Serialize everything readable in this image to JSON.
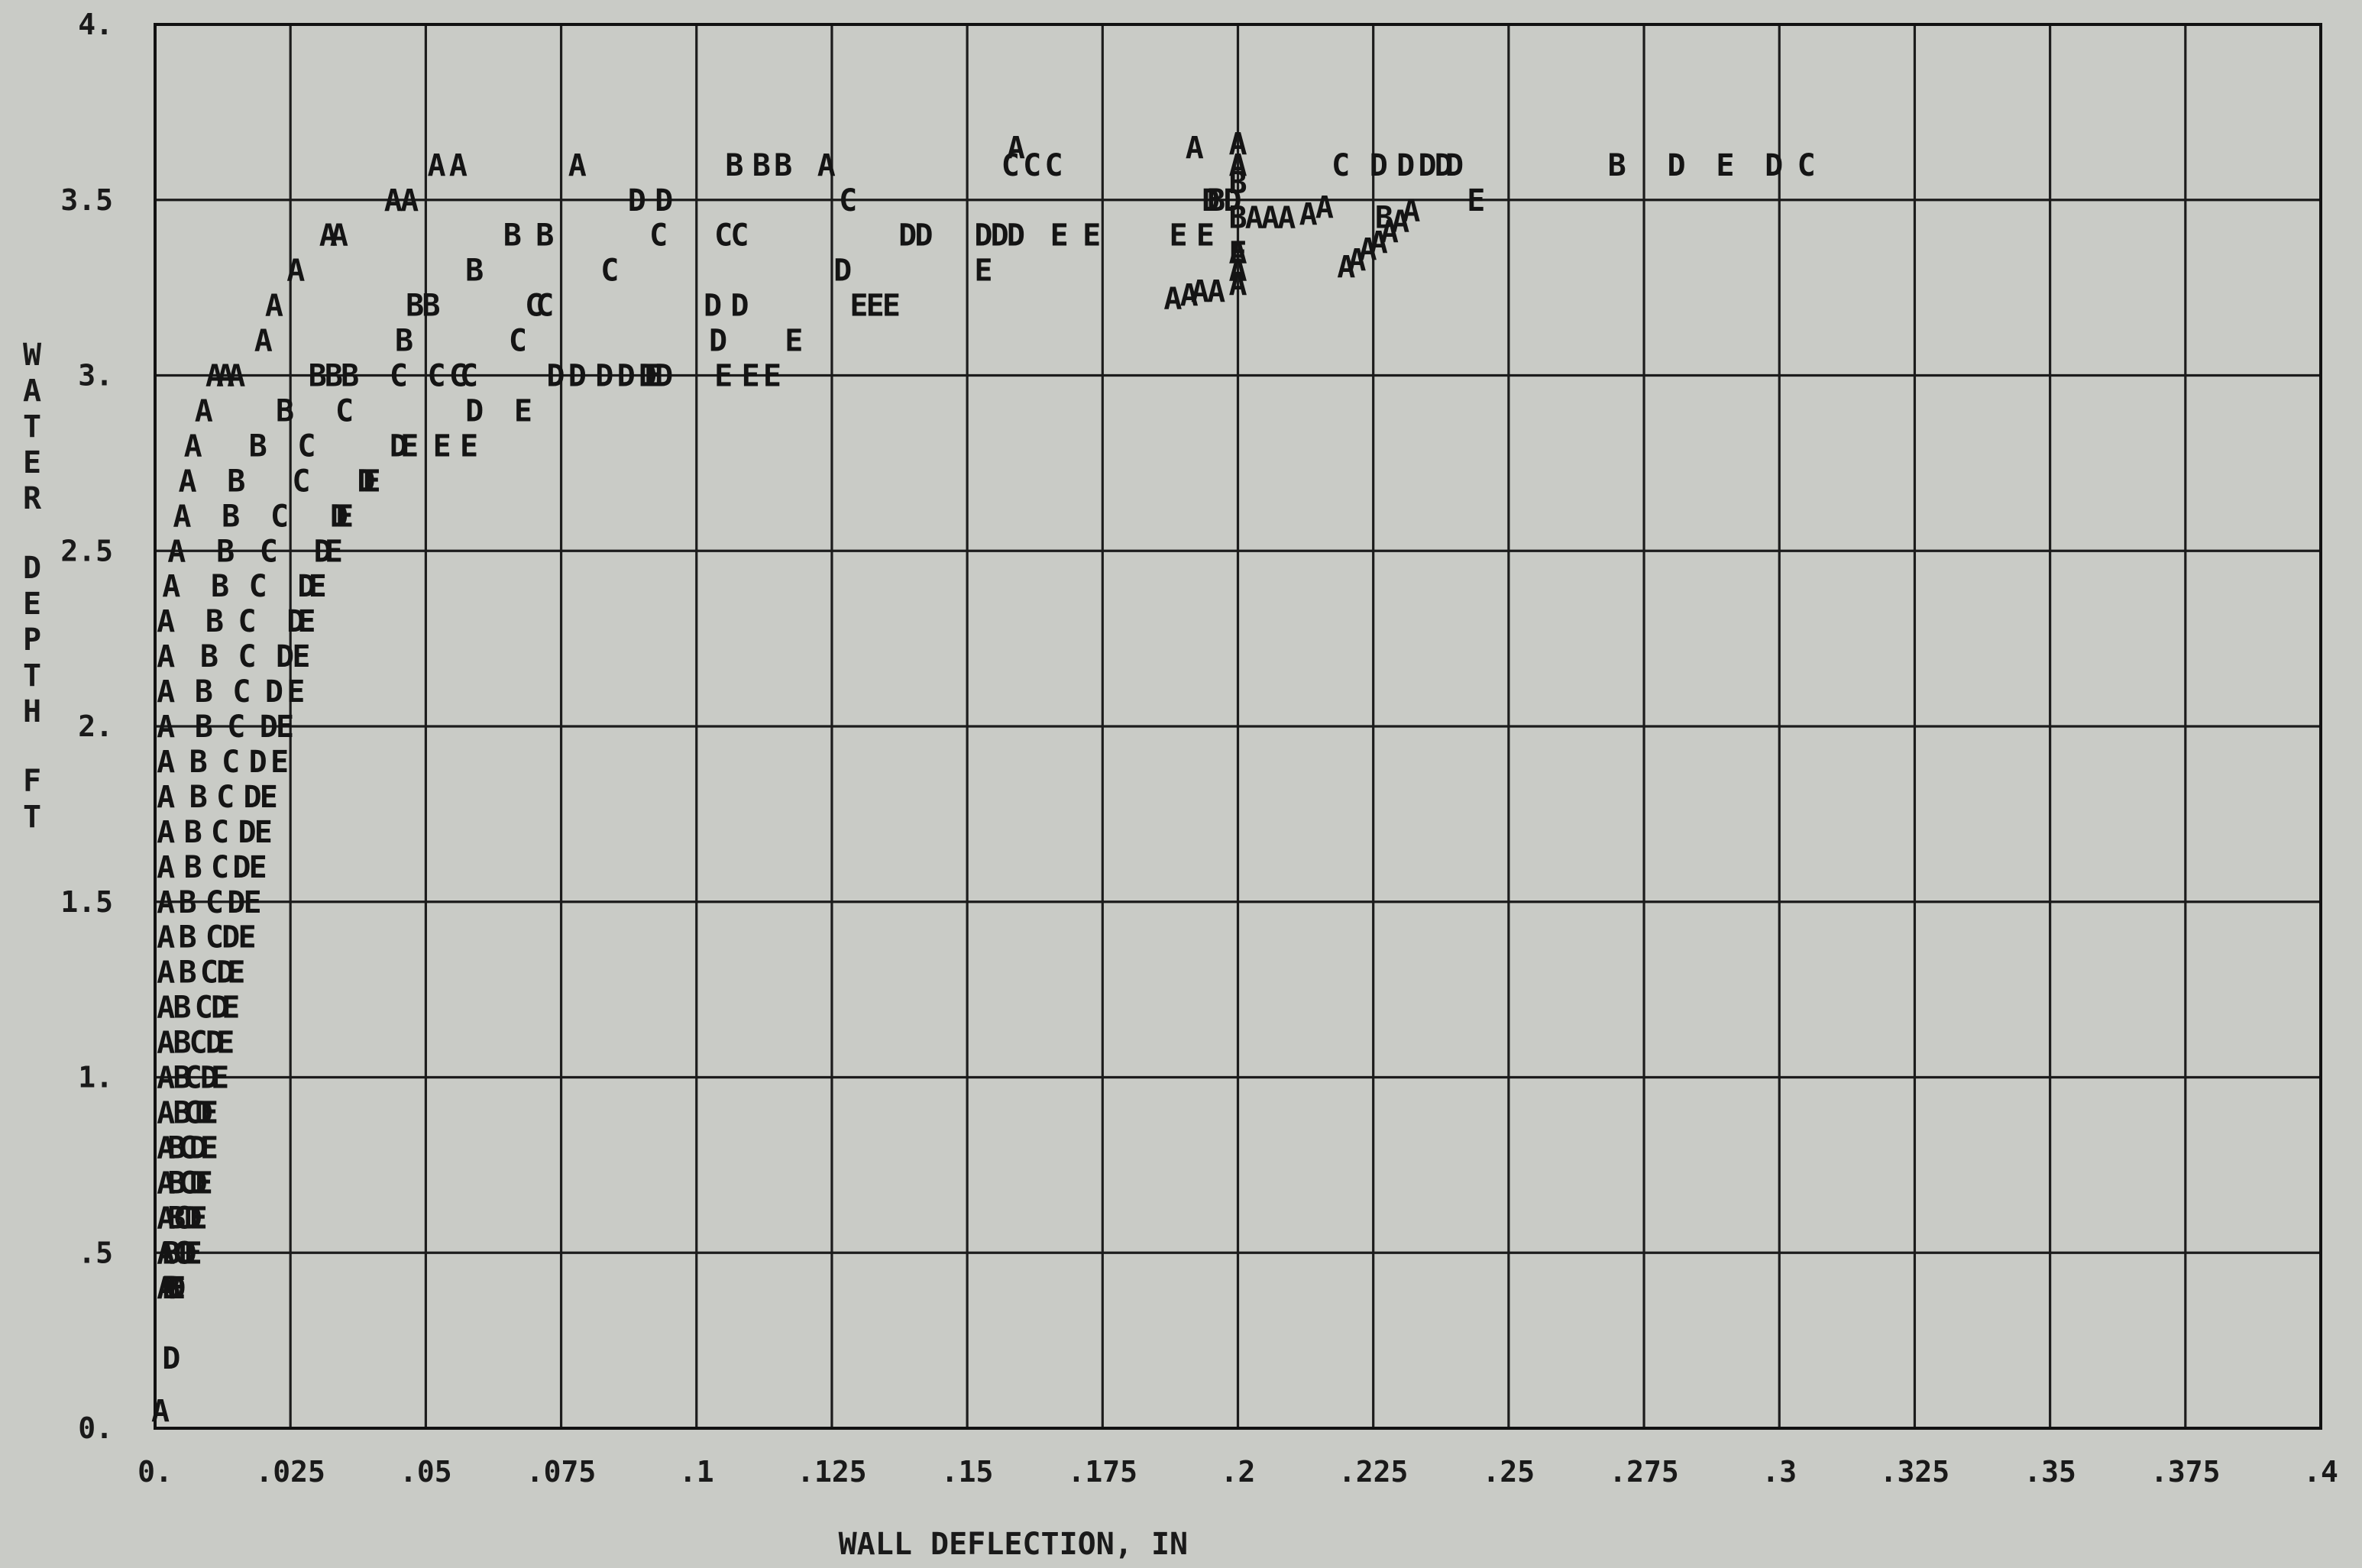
{
  "chart_data": {
    "type": "scatter",
    "title": "",
    "xlabel": "WALL DEFLECTION, IN",
    "ylabel": "WATER DEPTH FT",
    "xlim": [
      0,
      0.4
    ],
    "ylim": [
      0,
      4
    ],
    "grid": true,
    "x_ticks": [
      0,
      0.025,
      0.05,
      0.075,
      0.1,
      0.125,
      0.15,
      0.175,
      0.2,
      0.225,
      0.25,
      0.275,
      0.3,
      0.325,
      0.35,
      0.375,
      0.4
    ],
    "x_tick_labels": [
      "0.",
      ".025",
      ".05",
      ".075",
      ".1",
      ".125",
      ".15",
      ".175",
      ".2",
      ".225",
      ".25",
      ".275",
      ".3",
      ".325",
      ".35",
      ".375",
      ".4"
    ],
    "y_ticks": [
      0,
      0.5,
      1,
      1.5,
      2,
      2.5,
      3,
      3.5,
      4
    ],
    "y_tick_labels": [
      "0.",
      ".5",
      "1.",
      "1.5",
      "2.",
      "2.5",
      "3.",
      "3.5",
      "4."
    ],
    "series": [
      {
        "name": "A",
        "points": [
          [
            0.001,
            0.05
          ],
          [
            0.002,
            0.4
          ],
          [
            0.002,
            0.5
          ],
          [
            0.002,
            0.6
          ],
          [
            0.002,
            0.7
          ],
          [
            0.002,
            0.8
          ],
          [
            0.002,
            0.9
          ],
          [
            0.002,
            1.0
          ],
          [
            0.002,
            1.1
          ],
          [
            0.002,
            1.2
          ],
          [
            0.002,
            1.3
          ],
          [
            0.002,
            1.4
          ],
          [
            0.002,
            1.5
          ],
          [
            0.002,
            1.6
          ],
          [
            0.002,
            1.7
          ],
          [
            0.002,
            1.8
          ],
          [
            0.002,
            1.9
          ],
          [
            0.002,
            2.0
          ],
          [
            0.002,
            2.1
          ],
          [
            0.002,
            2.2
          ],
          [
            0.002,
            2.3
          ],
          [
            0.003,
            2.4
          ],
          [
            0.004,
            2.5
          ],
          [
            0.005,
            2.6
          ],
          [
            0.006,
            2.7
          ],
          [
            0.007,
            2.8
          ],
          [
            0.009,
            2.9
          ],
          [
            0.011,
            3.0
          ],
          [
            0.013,
            3.0
          ],
          [
            0.015,
            3.0
          ],
          [
            0.02,
            3.1
          ],
          [
            0.022,
            3.2
          ],
          [
            0.026,
            3.3
          ],
          [
            0.032,
            3.4
          ],
          [
            0.034,
            3.4
          ],
          [
            0.044,
            3.5
          ],
          [
            0.047,
            3.5
          ],
          [
            0.052,
            3.6
          ],
          [
            0.056,
            3.6
          ],
          [
            0.078,
            3.6
          ],
          [
            0.124,
            3.6
          ],
          [
            0.159,
            3.65
          ],
          [
            0.192,
            3.65
          ],
          [
            0.2,
            3.66
          ],
          [
            0.2,
            3.6
          ],
          [
            0.188,
            3.22
          ],
          [
            0.191,
            3.23
          ],
          [
            0.193,
            3.24
          ],
          [
            0.196,
            3.24
          ],
          [
            0.2,
            3.26
          ],
          [
            0.203,
            3.45
          ],
          [
            0.206,
            3.45
          ],
          [
            0.209,
            3.45
          ],
          [
            0.213,
            3.46
          ],
          [
            0.22,
            3.31
          ],
          [
            0.222,
            3.33
          ],
          [
            0.224,
            3.36
          ],
          [
            0.226,
            3.38
          ],
          [
            0.228,
            3.41
          ],
          [
            0.23,
            3.44
          ],
          [
            0.232,
            3.47
          ],
          [
            0.216,
            3.48
          ],
          [
            0.2,
            3.3
          ],
          [
            0.2,
            3.35
          ]
        ]
      },
      {
        "name": "B",
        "points": [
          [
            0.003,
            0.4
          ],
          [
            0.003,
            0.5
          ],
          [
            0.004,
            0.6
          ],
          [
            0.004,
            0.7
          ],
          [
            0.004,
            0.8
          ],
          [
            0.005,
            0.9
          ],
          [
            0.005,
            1.0
          ],
          [
            0.005,
            1.1
          ],
          [
            0.005,
            1.2
          ],
          [
            0.006,
            1.3
          ],
          [
            0.006,
            1.4
          ],
          [
            0.006,
            1.5
          ],
          [
            0.007,
            1.6
          ],
          [
            0.007,
            1.7
          ],
          [
            0.008,
            1.8
          ],
          [
            0.008,
            1.9
          ],
          [
            0.009,
            2.0
          ],
          [
            0.009,
            2.1
          ],
          [
            0.01,
            2.2
          ],
          [
            0.011,
            2.3
          ],
          [
            0.012,
            2.4
          ],
          [
            0.013,
            2.5
          ],
          [
            0.014,
            2.6
          ],
          [
            0.015,
            2.7
          ],
          [
            0.019,
            2.8
          ],
          [
            0.024,
            2.9
          ],
          [
            0.03,
            3.0
          ],
          [
            0.033,
            3.0
          ],
          [
            0.036,
            3.0
          ],
          [
            0.046,
            3.1
          ],
          [
            0.048,
            3.2
          ],
          [
            0.051,
            3.2
          ],
          [
            0.059,
            3.3
          ],
          [
            0.066,
            3.4
          ],
          [
            0.072,
            3.4
          ],
          [
            0.107,
            3.6
          ],
          [
            0.112,
            3.6
          ],
          [
            0.116,
            3.6
          ],
          [
            0.196,
            3.5
          ],
          [
            0.2,
            3.45
          ],
          [
            0.2,
            3.55
          ],
          [
            0.227,
            3.45
          ],
          [
            0.27,
            3.6
          ]
        ]
      },
      {
        "name": "C",
        "points": [
          [
            0.005,
            0.5
          ],
          [
            0.005,
            0.6
          ],
          [
            0.006,
            0.7
          ],
          [
            0.006,
            0.8
          ],
          [
            0.007,
            0.9
          ],
          [
            0.007,
            1.0
          ],
          [
            0.008,
            1.1
          ],
          [
            0.009,
            1.2
          ],
          [
            0.01,
            1.3
          ],
          [
            0.011,
            1.4
          ],
          [
            0.011,
            1.5
          ],
          [
            0.012,
            1.6
          ],
          [
            0.012,
            1.7
          ],
          [
            0.013,
            1.8
          ],
          [
            0.014,
            1.9
          ],
          [
            0.015,
            2.0
          ],
          [
            0.016,
            2.1
          ],
          [
            0.017,
            2.2
          ],
          [
            0.017,
            2.3
          ],
          [
            0.019,
            2.4
          ],
          [
            0.021,
            2.5
          ],
          [
            0.023,
            2.6
          ],
          [
            0.027,
            2.7
          ],
          [
            0.028,
            2.8
          ],
          [
            0.035,
            2.9
          ],
          [
            0.045,
            3.0
          ],
          [
            0.052,
            3.0
          ],
          [
            0.056,
            3.0
          ],
          [
            0.058,
            3.0
          ],
          [
            0.067,
            3.1
          ],
          [
            0.07,
            3.2
          ],
          [
            0.072,
            3.2
          ],
          [
            0.084,
            3.3
          ],
          [
            0.093,
            3.4
          ],
          [
            0.105,
            3.4
          ],
          [
            0.108,
            3.4
          ],
          [
            0.128,
            3.5
          ],
          [
            0.158,
            3.6
          ],
          [
            0.162,
            3.6
          ],
          [
            0.166,
            3.6
          ],
          [
            0.219,
            3.6
          ],
          [
            0.305,
            3.6
          ]
        ]
      },
      {
        "name": "D",
        "points": [
          [
            0.003,
            0.2
          ],
          [
            0.004,
            0.4
          ],
          [
            0.006,
            0.5
          ],
          [
            0.007,
            0.6
          ],
          [
            0.008,
            0.7
          ],
          [
            0.008,
            0.8
          ],
          [
            0.009,
            0.9
          ],
          [
            0.01,
            1.0
          ],
          [
            0.011,
            1.1
          ],
          [
            0.012,
            1.2
          ],
          [
            0.013,
            1.3
          ],
          [
            0.014,
            1.4
          ],
          [
            0.015,
            1.5
          ],
          [
            0.016,
            1.6
          ],
          [
            0.017,
            1.7
          ],
          [
            0.018,
            1.8
          ],
          [
            0.019,
            1.9
          ],
          [
            0.021,
            2.0
          ],
          [
            0.022,
            2.1
          ],
          [
            0.024,
            2.2
          ],
          [
            0.026,
            2.3
          ],
          [
            0.028,
            2.4
          ],
          [
            0.031,
            2.5
          ],
          [
            0.034,
            2.6
          ],
          [
            0.039,
            2.7
          ],
          [
            0.045,
            2.8
          ],
          [
            0.059,
            2.9
          ],
          [
            0.074,
            3.0
          ],
          [
            0.078,
            3.0
          ],
          [
            0.083,
            3.0
          ],
          [
            0.087,
            3.0
          ],
          [
            0.091,
            3.0
          ],
          [
            0.094,
            3.0
          ],
          [
            0.104,
            3.1
          ],
          [
            0.103,
            3.2
          ],
          [
            0.108,
            3.2
          ],
          [
            0.127,
            3.3
          ],
          [
            0.139,
            3.4
          ],
          [
            0.142,
            3.4
          ],
          [
            0.153,
            3.4
          ],
          [
            0.156,
            3.4
          ],
          [
            0.159,
            3.4
          ],
          [
            0.089,
            3.5
          ],
          [
            0.094,
            3.5
          ],
          [
            0.195,
            3.5
          ],
          [
            0.199,
            3.5
          ],
          [
            0.226,
            3.6
          ],
          [
            0.231,
            3.6
          ],
          [
            0.235,
            3.6
          ],
          [
            0.238,
            3.6
          ],
          [
            0.24,
            3.6
          ],
          [
            0.281,
            3.6
          ],
          [
            0.299,
            3.6
          ]
        ]
      },
      {
        "name": "E",
        "points": [
          [
            0.004,
            0.4
          ],
          [
            0.007,
            0.5
          ],
          [
            0.008,
            0.6
          ],
          [
            0.009,
            0.7
          ],
          [
            0.01,
            0.8
          ],
          [
            0.01,
            0.9
          ],
          [
            0.012,
            1.0
          ],
          [
            0.013,
            1.1
          ],
          [
            0.014,
            1.2
          ],
          [
            0.015,
            1.3
          ],
          [
            0.017,
            1.4
          ],
          [
            0.018,
            1.5
          ],
          [
            0.019,
            1.6
          ],
          [
            0.02,
            1.7
          ],
          [
            0.021,
            1.8
          ],
          [
            0.023,
            1.9
          ],
          [
            0.024,
            2.0
          ],
          [
            0.026,
            2.1
          ],
          [
            0.027,
            2.2
          ],
          [
            0.028,
            2.3
          ],
          [
            0.03,
            2.4
          ],
          [
            0.033,
            2.5
          ],
          [
            0.035,
            2.6
          ],
          [
            0.04,
            2.7
          ],
          [
            0.047,
            2.8
          ],
          [
            0.053,
            2.8
          ],
          [
            0.058,
            2.8
          ],
          [
            0.068,
            2.9
          ],
          [
            0.092,
            3.0
          ],
          [
            0.105,
            3.0
          ],
          [
            0.11,
            3.0
          ],
          [
            0.114,
            3.0
          ],
          [
            0.118,
            3.1
          ],
          [
            0.13,
            3.2
          ],
          [
            0.133,
            3.2
          ],
          [
            0.136,
            3.2
          ],
          [
            0.153,
            3.3
          ],
          [
            0.167,
            3.4
          ],
          [
            0.173,
            3.4
          ],
          [
            0.189,
            3.4
          ],
          [
            0.194,
            3.4
          ],
          [
            0.2,
            3.35
          ],
          [
            0.244,
            3.5
          ],
          [
            0.29,
            3.6
          ]
        ]
      }
    ]
  }
}
